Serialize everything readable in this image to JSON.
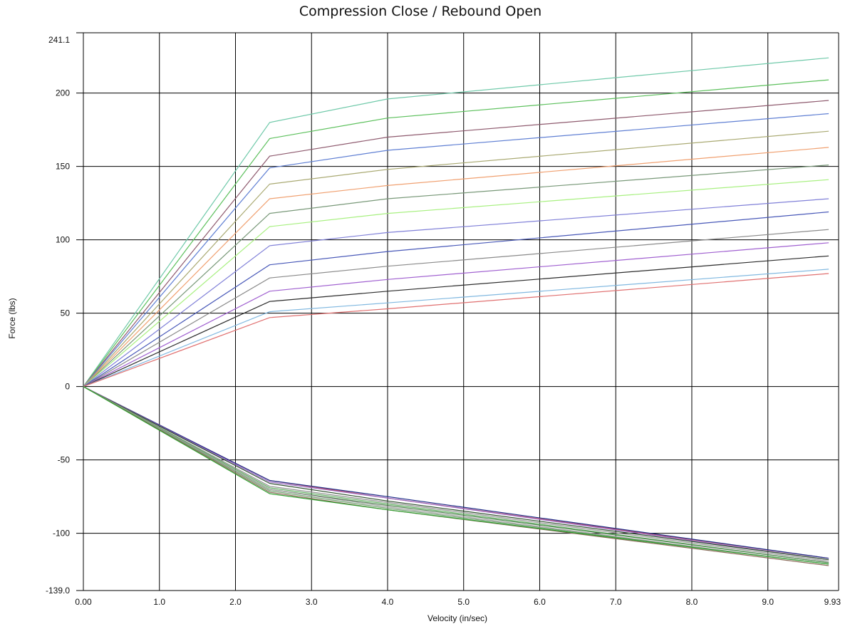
{
  "chart_data": {
    "type": "line",
    "title": "Compression Close / Rebound Open",
    "xlabel": "Velocity (in/sec)",
    "ylabel": "Force (lbs)",
    "xlim": [
      0.0,
      9.93
    ],
    "ylim": [
      -139.0,
      241.1
    ],
    "x_ticks": [
      "0.00",
      "1.0",
      "2.0",
      "3.0",
      "4.0",
      "5.0",
      "6.0",
      "7.0",
      "8.0",
      "9.0",
      "9.93"
    ],
    "x_tick_values": [
      0,
      1,
      2,
      3,
      4,
      5,
      6,
      7,
      8,
      9,
      9.93
    ],
    "y_ticks": [
      "241.1",
      "200",
      "150",
      "100",
      "50",
      "0",
      "-50",
      "-100",
      "-139.0"
    ],
    "y_tick_values": [
      241.1,
      200,
      150,
      100,
      50,
      0,
      -50,
      -100,
      -139.0
    ],
    "grid": true,
    "series": [
      {
        "color": "#6fc9a9",
        "x": [
          0,
          2.45,
          4.0,
          9.8
        ],
        "y": [
          0,
          180,
          196,
          224
        ]
      },
      {
        "color": "#5cc05c",
        "x": [
          0,
          2.45,
          4.0,
          9.8
        ],
        "y": [
          0,
          169,
          183,
          209
        ]
      },
      {
        "color": "#8e5a6e",
        "x": [
          0,
          2.45,
          4.0,
          9.8
        ],
        "y": [
          0,
          157,
          170,
          195
        ]
      },
      {
        "color": "#5f7fd3",
        "x": [
          0,
          2.45,
          4.0,
          9.8
        ],
        "y": [
          0,
          149,
          161,
          186
        ]
      },
      {
        "color": "#a8a870",
        "x": [
          0,
          2.45,
          4.0,
          9.8
        ],
        "y": [
          0,
          138,
          148,
          174
        ]
      },
      {
        "color": "#f0a070",
        "x": [
          0,
          2.45,
          4.0,
          9.8
        ],
        "y": [
          0,
          128,
          137,
          163
        ]
      },
      {
        "color": "#789878",
        "x": [
          0,
          2.45,
          4.0,
          9.8
        ],
        "y": [
          0,
          118,
          128,
          151
        ]
      },
      {
        "color": "#a8f080",
        "x": [
          0,
          2.45,
          4.0,
          9.8
        ],
        "y": [
          0,
          109,
          118,
          141
        ]
      },
      {
        "color": "#8080d8",
        "x": [
          0,
          2.45,
          4.0,
          9.8
        ],
        "y": [
          0,
          96,
          105,
          128
        ]
      },
      {
        "color": "#4858b8",
        "x": [
          0,
          2.45,
          4.0,
          9.8
        ],
        "y": [
          0,
          83,
          92,
          119
        ]
      },
      {
        "color": "#8a8a8a",
        "x": [
          0,
          2.45,
          4.0,
          9.8
        ],
        "y": [
          0,
          74,
          82,
          107
        ]
      },
      {
        "color": "#a060d0",
        "x": [
          0,
          2.45,
          4.0,
          9.8
        ],
        "y": [
          0,
          65,
          73,
          98
        ]
      },
      {
        "color": "#2a2a2a",
        "x": [
          0,
          2.45,
          4.0,
          9.8
        ],
        "y": [
          0,
          58,
          65,
          89
        ]
      },
      {
        "color": "#80b8e0",
        "x": [
          0,
          2.45,
          4.0,
          9.8
        ],
        "y": [
          0,
          51,
          57,
          80
        ]
      },
      {
        "color": "#e07070",
        "x": [
          0,
          2.45,
          4.0,
          9.8
        ],
        "y": [
          0,
          47,
          53,
          77
        ]
      },
      {
        "color": "#e06060",
        "x": [
          0,
          2.45,
          4.0,
          9.8
        ],
        "y": [
          0,
          -64,
          -76,
          -117
        ]
      },
      {
        "color": "#1a2a88",
        "x": [
          0,
          2.45,
          4.0,
          9.8
        ],
        "y": [
          0,
          -64,
          -75,
          -117
        ]
      },
      {
        "color": "#9060c0",
        "x": [
          0,
          2.45,
          4.0,
          9.8
        ],
        "y": [
          0,
          -65,
          -76,
          -118
        ]
      },
      {
        "color": "#2f4f2f",
        "x": [
          0,
          2.45,
          4.0,
          9.8
        ],
        "y": [
          0,
          -66,
          -78,
          -118
        ]
      },
      {
        "color": "#909090",
        "x": [
          0,
          2.45,
          4.0,
          9.8
        ],
        "y": [
          0,
          -68,
          -79,
          -119
        ]
      },
      {
        "color": "#60b060",
        "x": [
          0,
          2.45,
          4.0,
          9.8
        ],
        "y": [
          0,
          -69,
          -80,
          -120
        ]
      },
      {
        "color": "#508050",
        "x": [
          0,
          2.45,
          4.0,
          9.8
        ],
        "y": [
          0,
          -70,
          -81,
          -120
        ]
      },
      {
        "color": "#a0a0a0",
        "x": [
          0,
          2.45,
          4.0,
          9.8
        ],
        "y": [
          0,
          -70,
          -82,
          -121
        ]
      },
      {
        "color": "#70a070",
        "x": [
          0,
          2.45,
          4.0,
          9.8
        ],
        "y": [
          0,
          -71,
          -83,
          -121
        ]
      },
      {
        "color": "#8a6a5a",
        "x": [
          0,
          2.45,
          4.0,
          9.8
        ],
        "y": [
          0,
          -72,
          -84,
          -122
        ]
      },
      {
        "color": "#30a030",
        "x": [
          0,
          2.45,
          4.0,
          9.8
        ],
        "y": [
          0,
          -73,
          -84,
          -121
        ]
      }
    ]
  }
}
